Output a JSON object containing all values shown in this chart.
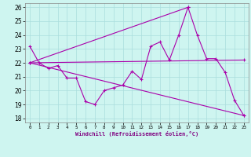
{
  "xlabel": "Windchill (Refroidissement éolien,°C)",
  "background_color": "#cef5f0",
  "grid_color": "#aadddd",
  "line_color": "#aa00aa",
  "xlim": [
    -0.5,
    23.5
  ],
  "ylim": [
    17.7,
    26.3
  ],
  "yticks": [
    18,
    19,
    20,
    21,
    22,
    23,
    24,
    25,
    26
  ],
  "xticks": [
    0,
    1,
    2,
    3,
    4,
    5,
    6,
    7,
    8,
    9,
    10,
    11,
    12,
    13,
    14,
    15,
    16,
    17,
    18,
    19,
    20,
    21,
    22,
    23
  ],
  "line1_x": [
    0,
    1,
    2,
    3,
    4,
    5,
    6,
    7,
    8,
    9,
    10,
    11,
    12,
    13,
    14,
    15,
    16,
    17,
    18,
    19,
    20,
    21,
    22,
    23
  ],
  "line1_y": [
    23.2,
    22.0,
    21.6,
    21.8,
    20.9,
    20.9,
    19.2,
    19.0,
    20.0,
    20.2,
    20.4,
    21.4,
    20.8,
    23.2,
    23.5,
    22.2,
    24.0,
    26.0,
    24.0,
    22.3,
    22.3,
    21.3,
    19.3,
    18.2
  ],
  "line2_x": [
    0,
    23
  ],
  "line2_y": [
    22.0,
    18.2
  ],
  "line3_x": [
    0,
    17
  ],
  "line3_y": [
    22.0,
    26.0
  ],
  "line4_x": [
    0,
    23
  ],
  "line4_y": [
    22.0,
    22.2
  ]
}
